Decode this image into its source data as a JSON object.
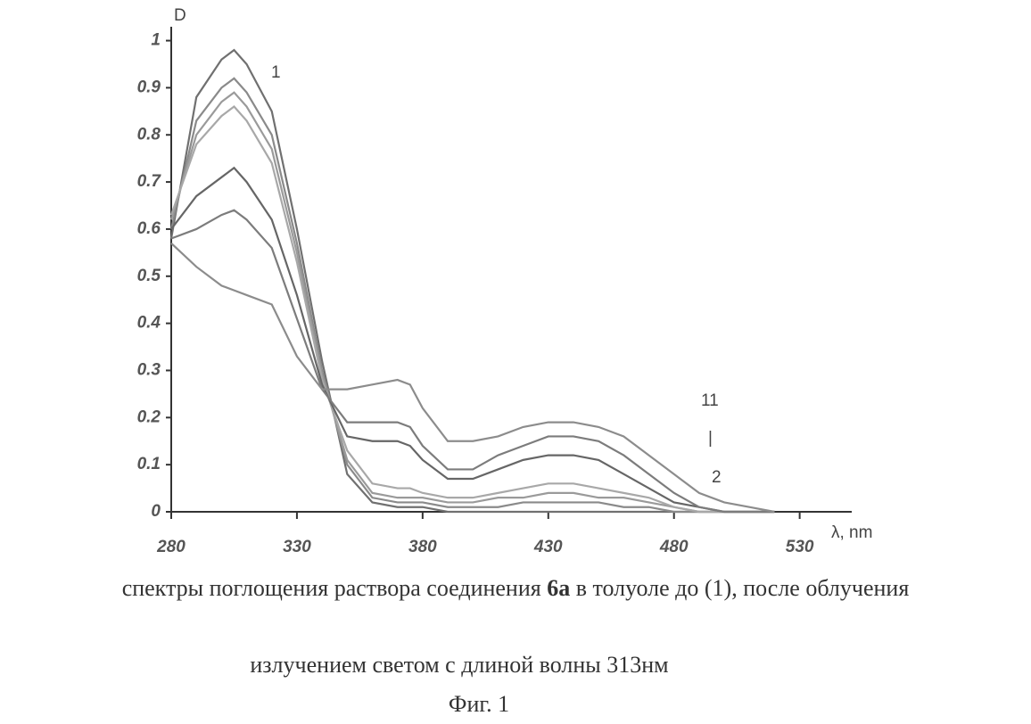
{
  "chart_data": {
    "type": "line",
    "y_axis_label": "D",
    "x_axis_label": "λ, nm",
    "annotations": [
      "1",
      "11",
      "|",
      "2"
    ],
    "caption_line1": [
      "спектры поглощения раствора соединения ",
      "6а",
      " в толуоле  до (1), после облучения"
    ],
    "caption_line2": "излучением светом с длиной волны 313нм",
    "figure_label": "Фиг. 1",
    "xlim": [
      280,
      550
    ],
    "ylim": [
      0,
      1.02
    ],
    "xticks": [
      280,
      330,
      380,
      430,
      480,
      530
    ],
    "yticks": [
      0,
      0.1,
      0.2,
      0.3,
      0.4,
      0.5,
      0.6,
      0.7,
      0.8,
      0.9,
      1
    ],
    "x": [
      280,
      290,
      300,
      305,
      310,
      320,
      330,
      340,
      350,
      360,
      370,
      375,
      380,
      390,
      400,
      410,
      420,
      430,
      440,
      450,
      460,
      470,
      480,
      490,
      500,
      510,
      520
    ],
    "series": [
      {
        "color": "#707070",
        "values": [
          0.58,
          0.88,
          0.96,
          0.98,
          0.95,
          0.85,
          0.6,
          0.32,
          0.08,
          0.02,
          0.01,
          0.01,
          0.01,
          0,
          0,
          0,
          0,
          0,
          0,
          0,
          0,
          0,
          0,
          0,
          0,
          0,
          0
        ]
      },
      {
        "color": "#8a8a8a",
        "values": [
          0.6,
          0.83,
          0.9,
          0.92,
          0.89,
          0.8,
          0.57,
          0.3,
          0.1,
          0.03,
          0.02,
          0.02,
          0.02,
          0.01,
          0.01,
          0.01,
          0.02,
          0.02,
          0.02,
          0.02,
          0.01,
          0.01,
          0,
          0,
          0,
          0,
          0
        ]
      },
      {
        "color": "#9a9a9a",
        "values": [
          0.62,
          0.8,
          0.87,
          0.89,
          0.86,
          0.77,
          0.55,
          0.29,
          0.11,
          0.04,
          0.03,
          0.03,
          0.03,
          0.02,
          0.02,
          0.03,
          0.03,
          0.04,
          0.04,
          0.03,
          0.03,
          0.02,
          0.01,
          0,
          0,
          0,
          0
        ]
      },
      {
        "color": "#a8a8a8",
        "values": [
          0.63,
          0.78,
          0.84,
          0.86,
          0.83,
          0.74,
          0.53,
          0.28,
          0.13,
          0.06,
          0.05,
          0.05,
          0.04,
          0.03,
          0.03,
          0.04,
          0.05,
          0.06,
          0.06,
          0.05,
          0.04,
          0.03,
          0.01,
          0,
          0,
          0,
          0
        ]
      },
      {
        "color": "#666666",
        "values": [
          0.6,
          0.67,
          0.71,
          0.73,
          0.7,
          0.62,
          0.46,
          0.27,
          0.16,
          0.15,
          0.15,
          0.14,
          0.11,
          0.07,
          0.07,
          0.09,
          0.11,
          0.12,
          0.12,
          0.11,
          0.08,
          0.05,
          0.02,
          0.01,
          0,
          0,
          0
        ]
      },
      {
        "color": "#7c7c7c",
        "values": [
          0.58,
          0.6,
          0.63,
          0.64,
          0.62,
          0.56,
          0.41,
          0.26,
          0.19,
          0.19,
          0.19,
          0.18,
          0.14,
          0.09,
          0.09,
          0.12,
          0.14,
          0.16,
          0.16,
          0.15,
          0.12,
          0.08,
          0.04,
          0.01,
          0,
          0,
          0
        ]
      },
      {
        "color": "#8c8c8c",
        "values": [
          0.57,
          0.52,
          0.48,
          0.47,
          0.46,
          0.44,
          0.33,
          0.26,
          0.26,
          0.27,
          0.28,
          0.27,
          0.22,
          0.15,
          0.15,
          0.16,
          0.18,
          0.19,
          0.19,
          0.18,
          0.16,
          0.12,
          0.08,
          0.04,
          0.02,
          0.01,
          0
        ]
      }
    ]
  }
}
